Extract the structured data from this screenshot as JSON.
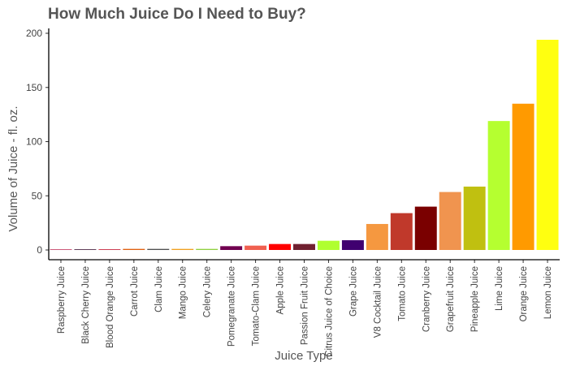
{
  "chart_data": {
    "type": "bar",
    "title": "How Much Juice Do I Need to Buy?",
    "xlabel": "Juice Type",
    "ylabel": "Volume of Juice - fl. oz.",
    "ylim": [
      0,
      200
    ],
    "yticks": [
      0,
      50,
      100,
      150,
      200
    ],
    "grid": false,
    "categories": [
      "Raspberry Juice",
      "Black Cherry Juice",
      "Blood Orange Juice",
      "Carrot Juice",
      "Clam Juice",
      "Mango Juice",
      "Celery Juice",
      "Pomegranate Juice",
      "Tomato-Clam Juice",
      "Apple Juice",
      "Passion Fruit Juice",
      "Citrus Juice of Choice",
      "Grape Juice",
      "V8 Cocktail Juice",
      "Tomato Juice",
      "Cranberry Juice",
      "Grapefruit Juice",
      "Pineapple Juice",
      "Lime Juice",
      "Orange Juice",
      "Lemon Juice"
    ],
    "values": [
      0.5,
      0.5,
      0.5,
      1,
      1,
      1,
      1,
      3.5,
      4,
      5.5,
      5.5,
      8.5,
      9,
      24,
      34,
      40,
      53.5,
      58.5,
      119,
      135,
      194
    ],
    "colors": [
      "#c0305a",
      "#3a1030",
      "#c0102a",
      "#e06010",
      "#505050",
      "#f0a020",
      "#90d040",
      "#700050",
      "#f06050",
      "#ff0000",
      "#702030",
      "#b0ff30",
      "#400070",
      "#f59840",
      "#c0392b",
      "#7a0000",
      "#f0944f",
      "#c0c010",
      "#b5ff30",
      "#ff9a00",
      "#ffff10"
    ]
  }
}
